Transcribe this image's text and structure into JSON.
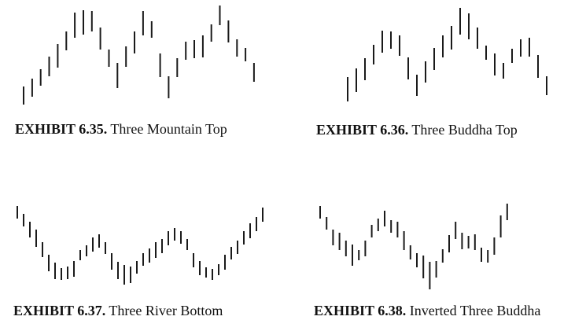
{
  "exhibits": [
    {
      "id": "6.35",
      "label": "EXHIBIT 6.35.",
      "title": "Three Mountain Top",
      "bars": [
        [
          110,
          133
        ],
        [
          100,
          123
        ],
        [
          88,
          109
        ],
        [
          72,
          97
        ],
        [
          56,
          86
        ],
        [
          40,
          64
        ],
        [
          16,
          48
        ],
        [
          13,
          44
        ],
        [
          14,
          40
        ],
        [
          35,
          63
        ],
        [
          63,
          85
        ],
        [
          80,
          112
        ],
        [
          59,
          85
        ],
        [
          40,
          68
        ],
        [
          14,
          45
        ],
        [
          27,
          48
        ],
        [
          68,
          98
        ],
        [
          97,
          125
        ],
        [
          74,
          98
        ],
        [
          53,
          76
        ],
        [
          51,
          74
        ],
        [
          45,
          73
        ],
        [
          31,
          53
        ],
        [
          7,
          32
        ],
        [
          26,
          54
        ],
        [
          50,
          72
        ],
        [
          61,
          78
        ],
        [
          80,
          104
        ]
      ],
      "stroke": "#1a1a1a"
    },
    {
      "id": "6.36",
      "label": "EXHIBIT 6.36.",
      "title": "Three Buddha Top",
      "bars": [
        [
          98,
          129
        ],
        [
          87,
          117
        ],
        [
          74,
          102
        ],
        [
          57,
          82
        ],
        [
          39,
          67
        ],
        [
          40,
          62
        ],
        [
          45,
          71
        ],
        [
          73,
          101
        ],
        [
          95,
          122
        ],
        [
          78,
          105
        ],
        [
          61,
          89
        ],
        [
          45,
          73
        ],
        [
          33,
          63
        ],
        [
          10,
          44
        ],
        [
          17,
          50
        ],
        [
          35,
          62
        ],
        [
          58,
          76
        ],
        [
          68,
          96
        ],
        [
          80,
          100
        ],
        [
          62,
          80
        ],
        [
          50,
          72
        ],
        [
          48,
          72
        ],
        [
          70,
          99
        ],
        [
          97,
          121
        ]
      ],
      "stroke": "#1a1a1a"
    },
    {
      "id": "6.37",
      "label": "EXHIBIT 6.37.",
      "title": "Three River Bottom",
      "bars": [
        [
          262,
          278
        ],
        [
          272,
          288
        ],
        [
          282,
          302
        ],
        [
          292,
          314
        ],
        [
          308,
          327
        ],
        [
          324,
          345
        ],
        [
          334,
          355
        ],
        [
          341,
          356
        ],
        [
          339,
          355
        ],
        [
          332,
          352
        ],
        [
          318,
          331
        ],
        [
          312,
          326
        ],
        [
          302,
          320
        ],
        [
          298,
          315
        ],
        [
          308,
          323
        ],
        [
          322,
          343
        ],
        [
          333,
          355
        ],
        [
          337,
          362
        ],
        [
          339,
          360
        ],
        [
          332,
          348
        ],
        [
          322,
          338
        ],
        [
          316,
          334
        ],
        [
          308,
          328
        ],
        [
          304,
          322
        ],
        [
          294,
          312
        ],
        [
          290,
          306
        ],
        [
          294,
          310
        ],
        [
          304,
          318
        ],
        [
          322,
          340
        ],
        [
          332,
          350
        ],
        [
          340,
          353
        ],
        [
          342,
          356
        ],
        [
          336,
          350
        ],
        [
          324,
          343
        ],
        [
          314,
          330
        ],
        [
          306,
          323
        ],
        [
          294,
          311
        ],
        [
          284,
          303
        ],
        [
          276,
          294
        ],
        [
          264,
          282
        ]
      ],
      "stroke": "#1a1a1a"
    },
    {
      "id": "6.38",
      "label": "EXHIBIT 6.38.",
      "title": "Inverted Three Buddha",
      "bars": [
        [
          262,
          278
        ],
        [
          276,
          292
        ],
        [
          292,
          312
        ],
        [
          296,
          318
        ],
        [
          306,
          326
        ],
        [
          311,
          338
        ],
        [
          318,
          331
        ],
        [
          306,
          326
        ],
        [
          286,
          302
        ],
        [
          278,
          294
        ],
        [
          268,
          288
        ],
        [
          280,
          296
        ],
        [
          282,
          302
        ],
        [
          294,
          318
        ],
        [
          312,
          330
        ],
        [
          322,
          340
        ],
        [
          325,
          354
        ],
        [
          333,
          368
        ],
        [
          332,
          353
        ],
        [
          317,
          334
        ],
        [
          299,
          321
        ],
        [
          282,
          304
        ],
        [
          296,
          317
        ],
        [
          300,
          316
        ],
        [
          298,
          318
        ],
        [
          315,
          333
        ],
        [
          318,
          334
        ],
        [
          302,
          324
        ],
        [
          274,
          302
        ],
        [
          259,
          280
        ]
      ],
      "stroke": "#1a1a1a"
    }
  ]
}
